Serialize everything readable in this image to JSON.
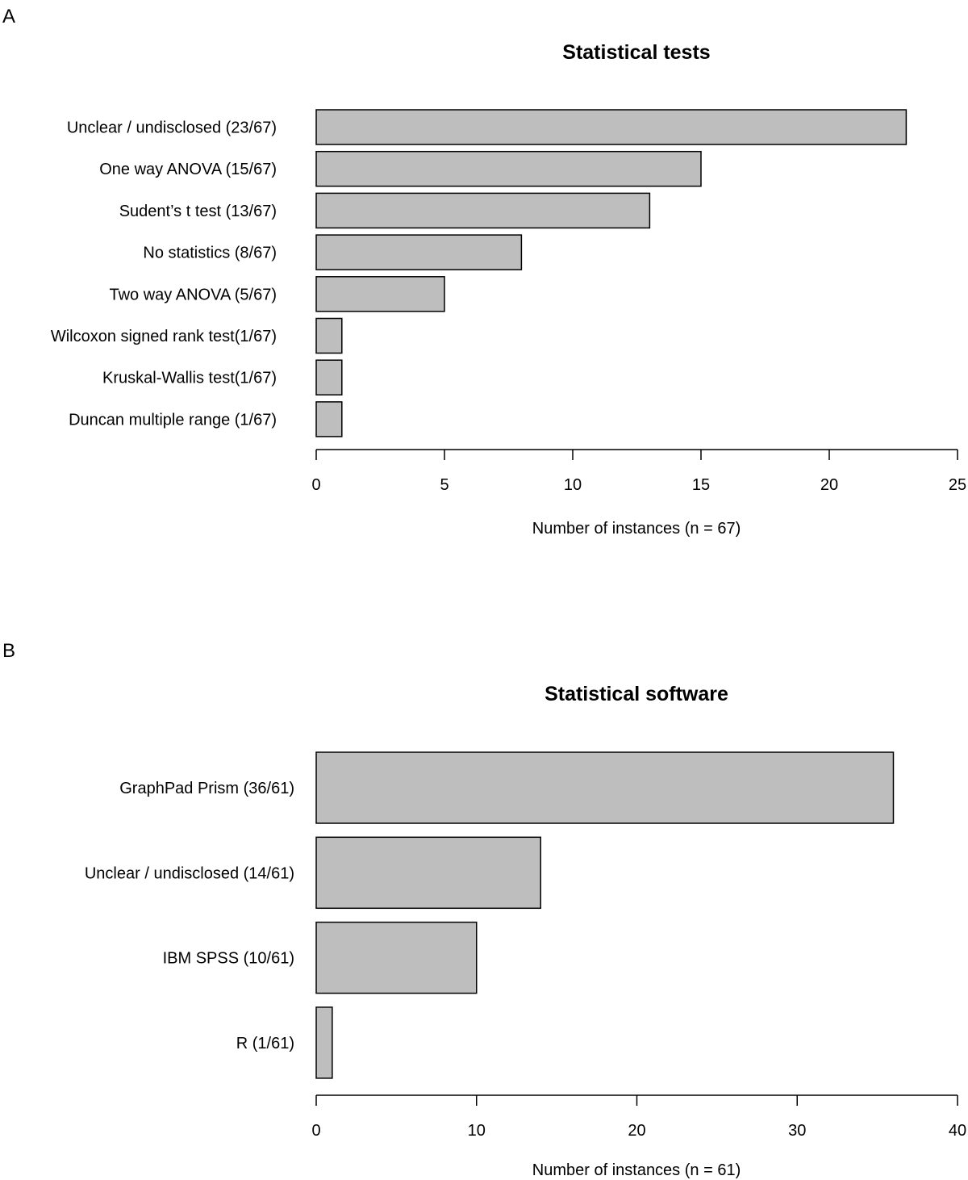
{
  "panels": [
    {
      "letter": "A"
    },
    {
      "letter": "B"
    }
  ],
  "chart_data": [
    {
      "type": "bar",
      "orientation": "horizontal",
      "title": "Statistical tests",
      "categories": [
        "Unclear / undisclosed (23/67)",
        "One way ANOVA (15/67)",
        "Sudent’s t test (13/67)",
        "No statistics (8/67)",
        "Two way ANOVA (5/67)",
        "Wilcoxon signed rank test(1/67)",
        "Kruskal-Wallis test(1/67)",
        "Duncan multiple range (1/67)"
      ],
      "values": [
        23,
        15,
        13,
        8,
        5,
        1,
        1,
        1
      ],
      "xlabel": "Number of instances (n = 67)",
      "ylabel": "",
      "xlim": [
        0,
        25
      ],
      "xticks": [
        0,
        5,
        10,
        15,
        20,
        25
      ],
      "grid": false,
      "bar_color": "#bebebe",
      "edge_color": "#000000"
    },
    {
      "type": "bar",
      "orientation": "horizontal",
      "title": "Statistical software",
      "categories": [
        "GraphPad Prism (36/61)",
        "Unclear / undisclosed (14/61)",
        "IBM SPSS (10/61)",
        "R (1/61)"
      ],
      "values": [
        36,
        14,
        10,
        1
      ],
      "xlabel": "Number of instances (n = 61)",
      "ylabel": "",
      "xlim": [
        0,
        40
      ],
      "xticks": [
        0,
        10,
        20,
        30,
        40
      ],
      "grid": false,
      "bar_color": "#bebebe",
      "edge_color": "#000000"
    }
  ]
}
